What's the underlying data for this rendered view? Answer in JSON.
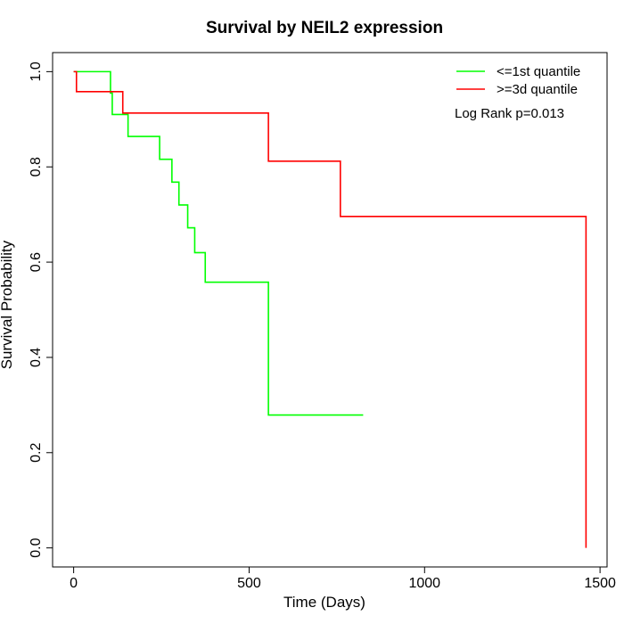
{
  "chart_data": {
    "type": "line",
    "subtype": "kaplan-meier-step",
    "title": "Survival by NEIL2 expression",
    "xlabel": "Time (Days)",
    "ylabel": "Survival Probability",
    "xlim": [
      -60,
      1520
    ],
    "ylim": [
      -0.04,
      1.04
    ],
    "x_ticks": [
      0,
      500,
      1000,
      1500
    ],
    "x_tick_labels": [
      "0",
      "500",
      "1000",
      "1500"
    ],
    "y_ticks": [
      0.0,
      0.2,
      0.4,
      0.6,
      0.8,
      1.0
    ],
    "y_tick_labels": [
      "0.0",
      "0.2",
      "0.4",
      "0.6",
      "0.8",
      "1.0"
    ],
    "grid": false,
    "legend_position": "top-right",
    "annotation": "Log Rank p=0.013",
    "series": [
      {
        "name": "<=1st quantile",
        "color": "#00ff00",
        "x": [
          0,
          105,
          110,
          155,
          245,
          280,
          300,
          325,
          345,
          375,
          555,
          825
        ],
        "y": [
          1.0,
          0.955,
          0.91,
          0.864,
          0.816,
          0.768,
          0.72,
          0.672,
          0.62,
          0.558,
          0.279,
          0.279
        ]
      },
      {
        "name": ">=3d quantile",
        "color": "#ff0000",
        "x": [
          0,
          8,
          140,
          555,
          760,
          1460
        ],
        "y": [
          1.0,
          0.958,
          0.913,
          0.812,
          0.696,
          0.0
        ]
      }
    ]
  }
}
